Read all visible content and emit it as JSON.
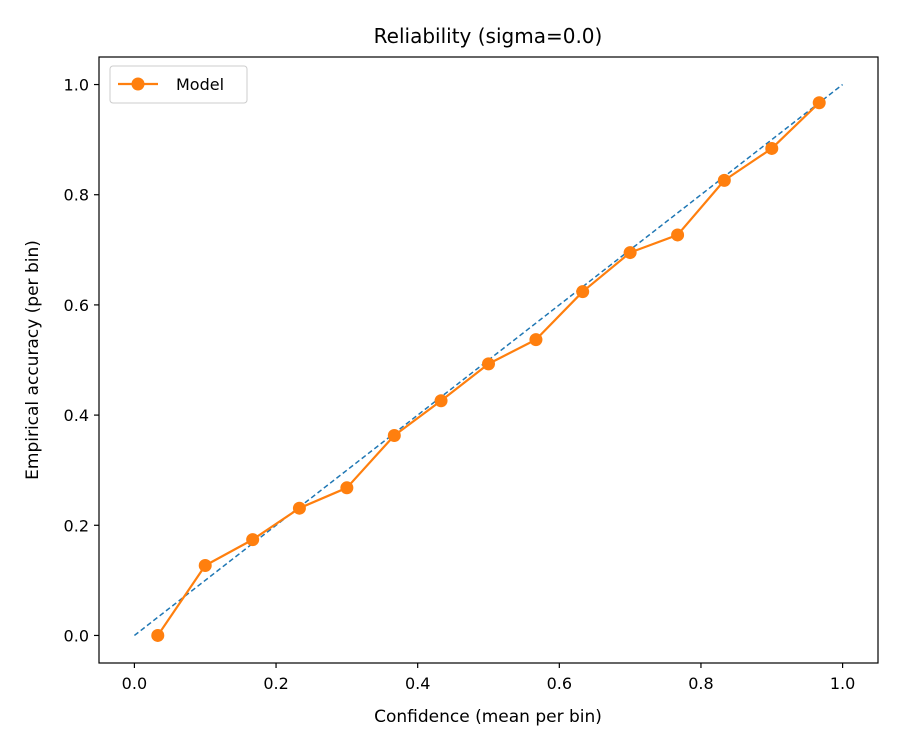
{
  "chart_data": {
    "type": "line",
    "title": "Reliability (sigma=0.0)",
    "xlabel": "Confidence (mean per bin)",
    "ylabel": "Empirical accuracy (per bin)",
    "xlim": [
      -0.05,
      1.05
    ],
    "ylim": [
      -0.05,
      1.05
    ],
    "xticks": [
      0.0,
      0.2,
      0.4,
      0.6,
      0.8,
      1.0
    ],
    "yticks": [
      0.0,
      0.2,
      0.4,
      0.6,
      0.8,
      1.0
    ],
    "xtick_labels": [
      "0.0",
      "0.2",
      "0.4",
      "0.6",
      "0.8",
      "1.0"
    ],
    "ytick_labels": [
      "0.0",
      "0.2",
      "0.4",
      "0.6",
      "0.8",
      "1.0"
    ],
    "grid": false,
    "legend_position": "top-left",
    "reference_line": {
      "x": [
        0.0,
        1.0
      ],
      "y": [
        0.0,
        1.0
      ],
      "style": "dashed",
      "color": "#1f77b4"
    },
    "series": [
      {
        "name": "Model",
        "color": "#ff7f0e",
        "marker": "circle",
        "x": [
          0.033,
          0.1,
          0.167,
          0.233,
          0.3,
          0.367,
          0.433,
          0.5,
          0.567,
          0.633,
          0.7,
          0.767,
          0.833,
          0.9,
          0.967
        ],
        "y": [
          0.0,
          0.127,
          0.174,
          0.231,
          0.268,
          0.363,
          0.426,
          0.493,
          0.537,
          0.624,
          0.695,
          0.727,
          0.826,
          0.884,
          0.967
        ]
      }
    ]
  }
}
